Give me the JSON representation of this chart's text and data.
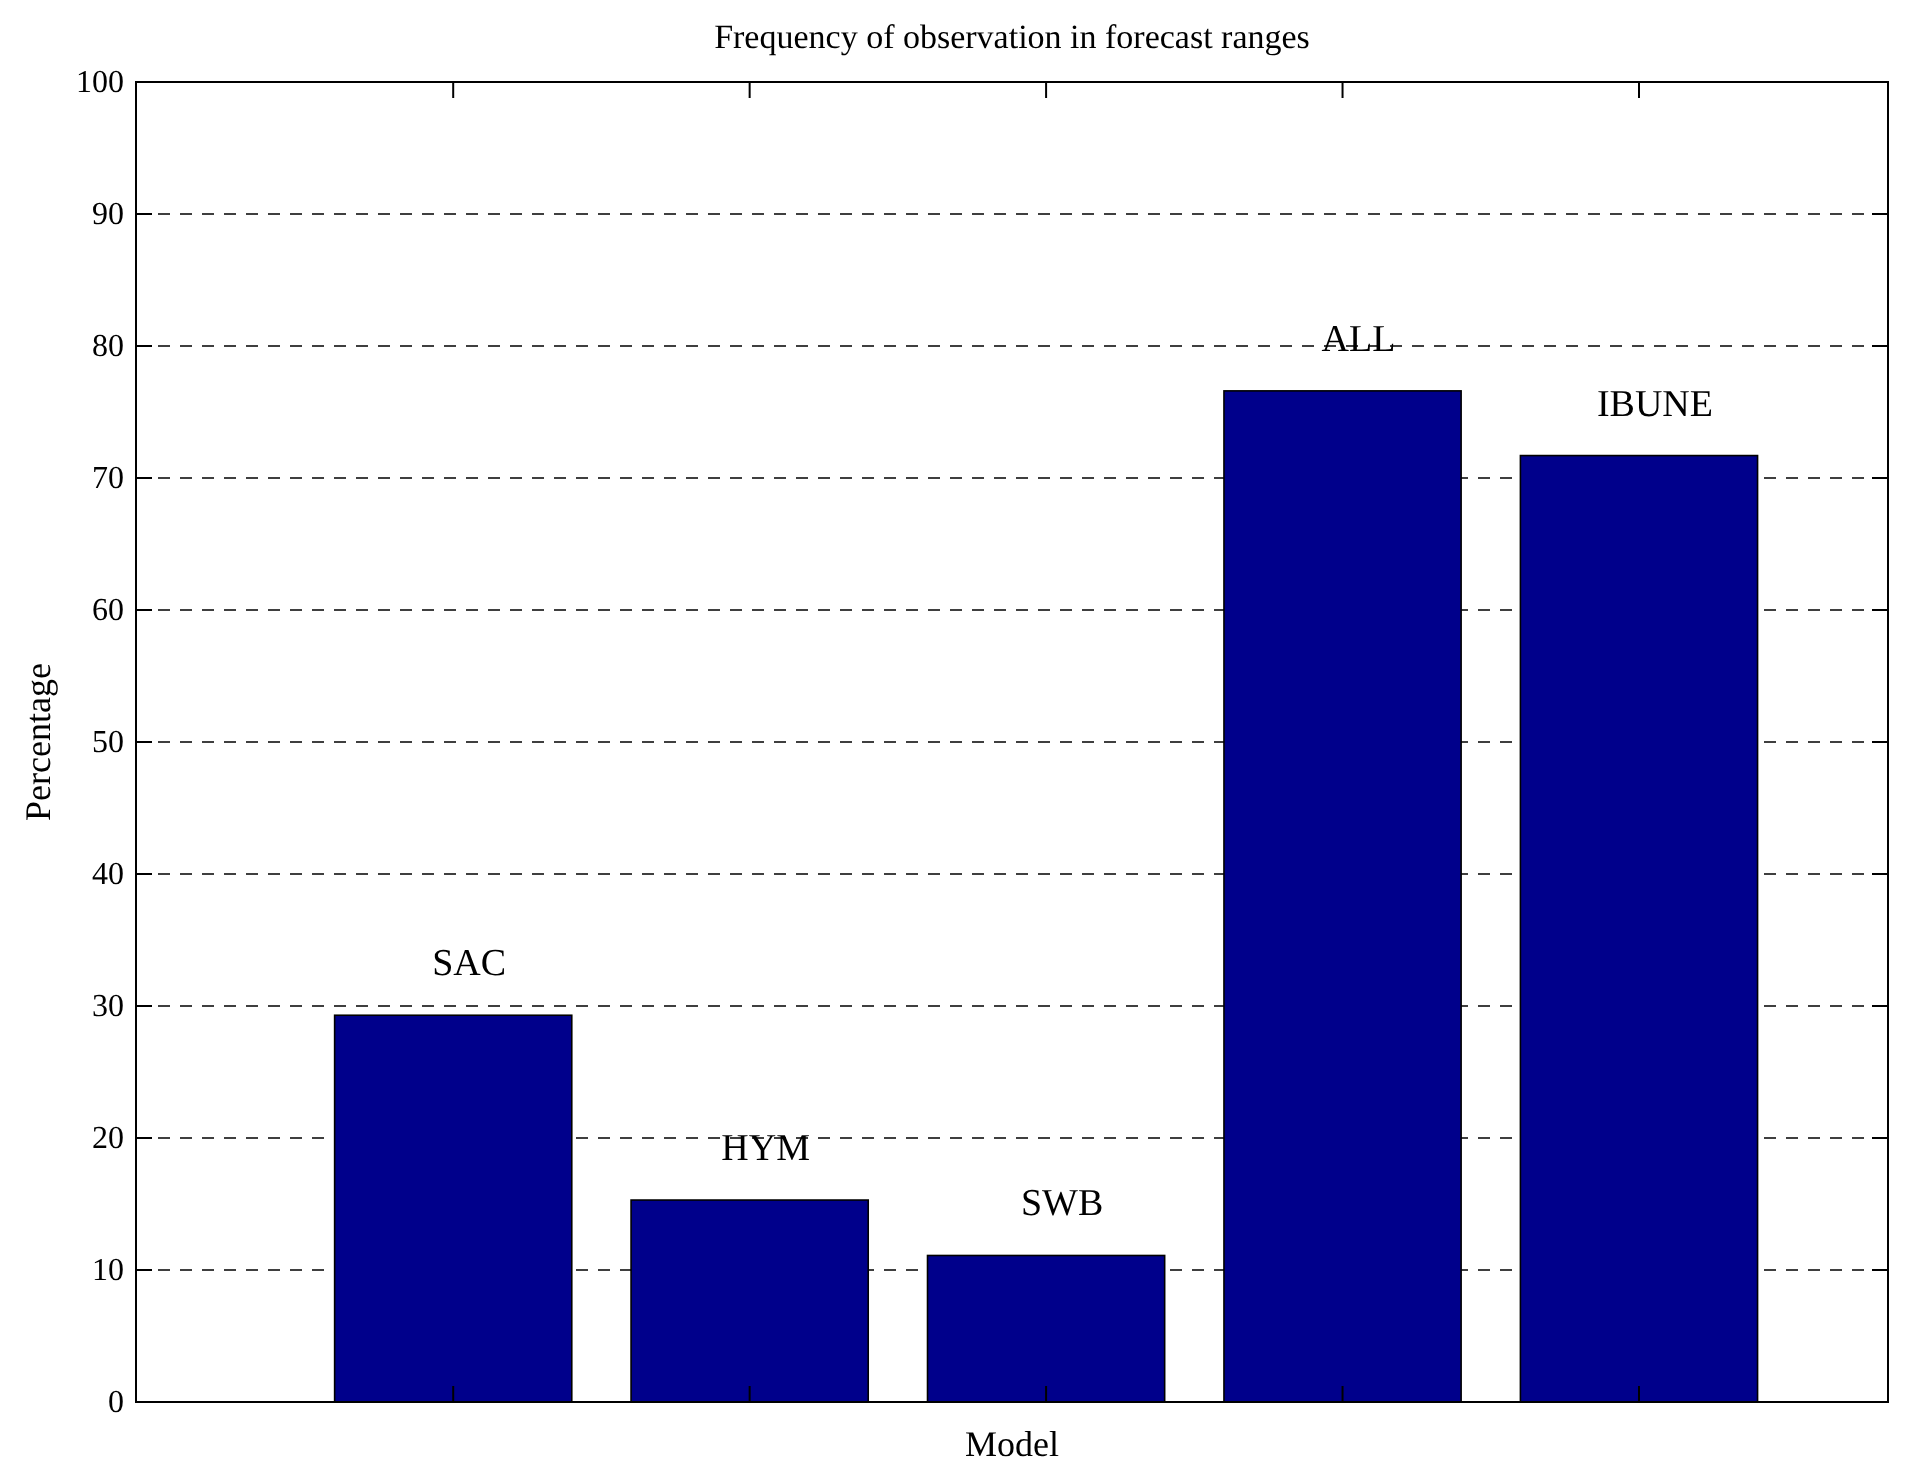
{
  "chart_data": {
    "type": "bar",
    "title": "Frequency of observation in forecast ranges",
    "xlabel": "Model",
    "ylabel": "Percentage",
    "categories": [
      "SAC",
      "HYM",
      "SWB",
      "ALL",
      "IBUNE"
    ],
    "values": [
      29.3,
      15.3,
      11.1,
      76.6,
      71.7
    ],
    "color": "#00008b",
    "ylim": [
      0,
      100
    ],
    "yticks": [
      0,
      10,
      20,
      30,
      40,
      50,
      60,
      70,
      80,
      90,
      100
    ],
    "grid": "y"
  }
}
